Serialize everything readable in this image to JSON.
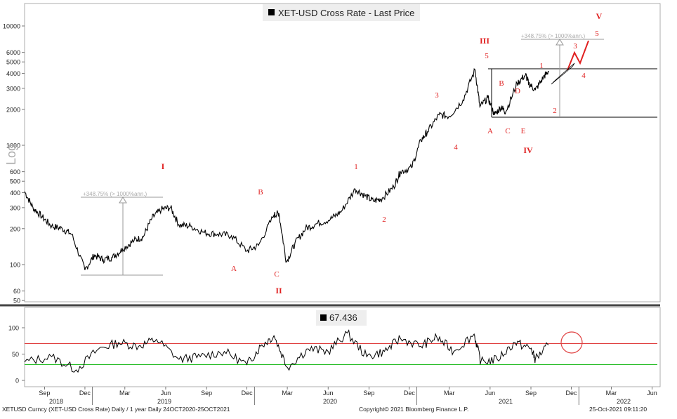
{
  "chart_data": [
    {
      "type": "line",
      "title": "XET-USD Cross Rate - Last Price",
      "yscale": "log",
      "ylabel": "Log",
      "yticks": [
        50,
        60,
        100,
        200,
        300,
        400,
        500,
        600,
        1000,
        2000,
        3000,
        4000,
        5000,
        6000,
        10000
      ],
      "ytick_labels": [
        "50",
        "60",
        "100",
        "200",
        "300",
        "400",
        "500",
        "600",
        "1000",
        "2000",
        "3000",
        "4000",
        "5000",
        "6000",
        "10000"
      ],
      "x_months": [
        "Sep",
        "Dec",
        "Mar",
        "Jun",
        "Sep",
        "Dec",
        "Mar",
        "Jun",
        "Sep",
        "Dec",
        "Mar",
        "Jun",
        "Sep",
        "Dec",
        "Mar",
        "Jun"
      ],
      "x_years": [
        "2018",
        "2019",
        "2020",
        "2021",
        "2022"
      ],
      "series": [
        {
          "x": [
            "2018-08-01",
            "2018-08-20",
            "2018-09-10",
            "2018-10-01",
            "2018-10-25",
            "2018-11-15",
            "2018-12-15",
            "2019-01-05",
            "2019-01-25",
            "2019-02-15",
            "2019-03-10",
            "2019-04-05",
            "2019-04-25",
            "2019-05-15",
            "2019-06-05",
            "2019-06-26",
            "2019-07-15",
            "2019-08-10",
            "2019-09-10",
            "2019-10-10",
            "2019-11-10",
            "2019-12-15",
            "2020-01-10",
            "2020-02-14",
            "2020-02-25",
            "2020-03-13",
            "2020-04-01",
            "2020-04-25",
            "2020-05-20",
            "2020-06-20",
            "2020-07-15",
            "2020-08-15",
            "2020-09-05",
            "2020-09-25",
            "2020-10-15",
            "2020-11-10",
            "2020-11-25",
            "2020-12-20",
            "2021-01-10",
            "2021-01-25",
            "2021-02-20",
            "2021-03-15",
            "2021-04-15",
            "2021-05-12",
            "2021-05-23",
            "2021-06-10",
            "2021-06-25",
            "2021-07-10",
            "2021-07-20",
            "2021-08-15",
            "2021-09-03",
            "2021-09-10",
            "2021-09-25",
            "2021-10-15",
            "2021-10-25"
          ],
          "values": [
            410,
            300,
            250,
            210,
            200,
            180,
            90,
            120,
            110,
            115,
            135,
            160,
            170,
            245,
            290,
            300,
            215,
            210,
            185,
            180,
            175,
            130,
            145,
            260,
            270,
            105,
            150,
            200,
            220,
            240,
            280,
            430,
            380,
            340,
            360,
            450,
            600,
            650,
            1100,
            1300,
            1800,
            1750,
            2400,
            4300,
            2100,
            2500,
            1800,
            2100,
            1900,
            3300,
            3900,
            3300,
            2900,
            3800,
            4200
          ]
        }
      ],
      "annotations": [
        "I",
        "II",
        "III",
        "IV",
        "V",
        "A",
        "B",
        "C",
        "A",
        "B",
        "C",
        "D",
        "E",
        "1",
        "2",
        "3",
        "4",
        "5",
        "1",
        "2",
        "3",
        "4",
        "5"
      ],
      "projection_labels": [
        "+348.75% (> 1000%ann.)",
        "+348.75% (> 1000%ann.)"
      ]
    },
    {
      "type": "line",
      "title": "",
      "value_box": "67.436",
      "yticks": [
        0,
        50,
        100
      ],
      "ytick_labels": [
        "0",
        "50",
        "100"
      ],
      "overbought": 70,
      "oversold": 30,
      "series": [
        {
          "x": [
            "2018-08-01",
            "2018-10-01",
            "2018-11-25",
            "2019-01-15",
            "2019-03-01",
            "2019-04-15",
            "2019-05-25",
            "2019-07-15",
            "2019-09-01",
            "2019-10-25",
            "2019-12-15",
            "2020-01-15",
            "2020-02-14",
            "2020-03-15",
            "2020-05-01",
            "2020-06-15",
            "2020-07-28",
            "2020-09-10",
            "2020-10-20",
            "2020-11-25",
            "2021-01-10",
            "2021-02-15",
            "2021-03-25",
            "2021-05-10",
            "2021-05-25",
            "2021-07-01",
            "2021-08-10",
            "2021-09-15",
            "2021-09-25",
            "2021-10-25"
          ],
          "values": [
            35,
            45,
            20,
            60,
            72,
            65,
            78,
            40,
            45,
            55,
            30,
            65,
            85,
            25,
            60,
            55,
            90,
            45,
            55,
            80,
            65,
            82,
            55,
            88,
            35,
            40,
            72,
            60,
            40,
            67.4
          ]
        }
      ],
      "circle_label": ""
    }
  ],
  "footer": {
    "left": "XETUSD Curncy (XET-USD Cross Rate) Daily / 1 year  Daily 24OCT2020-25OCT2021",
    "center": "Copyright© 2021 Bloomberg Finance L.P.",
    "right": "25-Oct-2021 09:11:20"
  },
  "colors": {
    "price": "#000000",
    "wave": "#e02020",
    "upper_band": "#e04040",
    "lower_band": "#22bb22",
    "projection": "#aaaaaa",
    "rsi_fill": "#f4c0c0"
  }
}
